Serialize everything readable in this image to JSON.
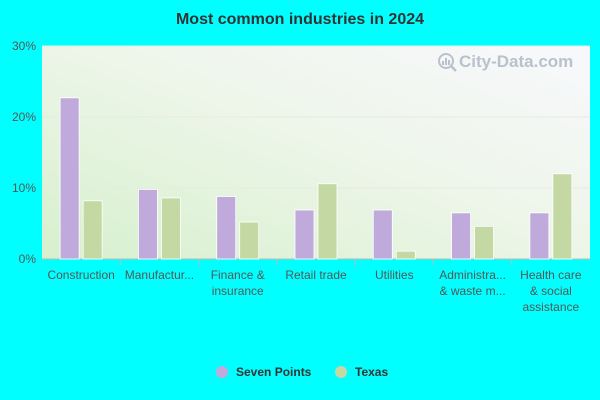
{
  "chart_data": {
    "type": "bar",
    "title": "Most common industries in 2024",
    "categories": [
      [
        "Construction"
      ],
      [
        "Manufactur..."
      ],
      [
        "Finance &",
        "insurance"
      ],
      [
        "Retail trade"
      ],
      [
        "Utilities"
      ],
      [
        "Administra...",
        "& waste m..."
      ],
      [
        "Health care",
        "& social",
        "assistance"
      ]
    ],
    "series": [
      {
        "name": "Seven Points",
        "color": "#c0aadb",
        "values": [
          22.7,
          9.8,
          8.8,
          6.9,
          6.9,
          6.5,
          6.5
        ]
      },
      {
        "name": "Texas",
        "color": "#c4d8a4",
        "values": [
          8.2,
          8.6,
          5.2,
          10.6,
          1.1,
          4.6,
          12.0
        ]
      }
    ],
    "ylim": [
      0,
      30
    ],
    "yticks": [
      {
        "value": 0,
        "label": "0%"
      },
      {
        "value": 10,
        "label": "10%"
      },
      {
        "value": 20,
        "label": "20%"
      },
      {
        "value": 30,
        "label": "30%"
      }
    ],
    "grid": true,
    "legend_position": "bottom-center",
    "xlabel": "",
    "ylabel": ""
  },
  "watermark": {
    "text": "City-Data.com",
    "icon": "magnifier-bar-chart-icon"
  },
  "colors": {
    "background": "#00ffff",
    "plot_gradient_start": "#e0f2d8",
    "plot_gradient_end": "#f8f8fc"
  }
}
